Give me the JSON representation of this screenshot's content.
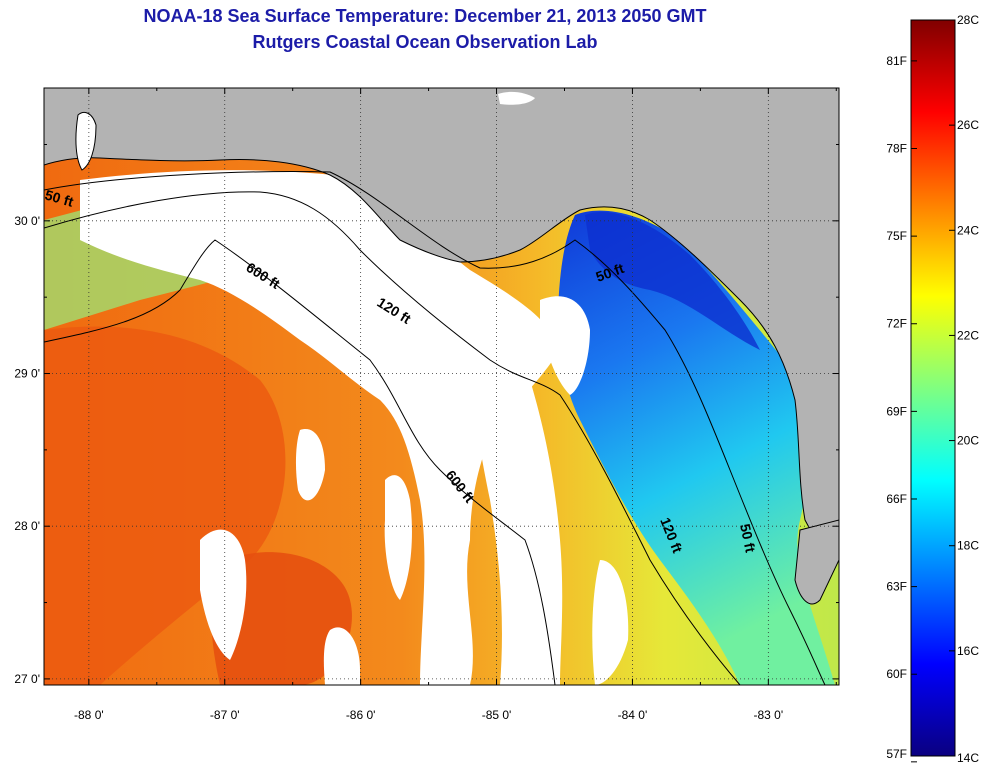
{
  "title": {
    "line1": "NOAA-18 Sea Surface Temperature:  December 21, 2013 2050 GMT",
    "line2": "Rutgers Coastal Ocean Observation Lab"
  },
  "map": {
    "lon_range": [
      -88.33,
      -82.48
    ],
    "lat_range": [
      26.96,
      30.87
    ],
    "lon_ticks": [
      {
        "value": -88,
        "label": "-88 0'"
      },
      {
        "value": -87,
        "label": "-87 0'"
      },
      {
        "value": -86,
        "label": "-86 0'"
      },
      {
        "value": -85,
        "label": "-85 0'"
      },
      {
        "value": -84,
        "label": "-84 0'"
      },
      {
        "value": -83,
        "label": "-83 0'"
      }
    ],
    "lat_ticks": [
      {
        "value": 30,
        "label": "30 0'"
      },
      {
        "value": 29,
        "label": "29 0'"
      },
      {
        "value": 28,
        "label": "28 0'"
      },
      {
        "value": 27,
        "label": "27 0'"
      }
    ],
    "contour_labels": [
      "50 ft",
      "600 ft",
      "120 ft",
      "50 ft",
      "600 ft",
      "120 ft",
      "50 ft"
    ],
    "colors": {
      "land": "#b3b3b3",
      "cloud": "#ffffff",
      "warm": "#f07018",
      "cool": "#1a4fd8"
    }
  },
  "colorbar": {
    "celsius_labels": [
      "28C",
      "26C",
      "24C",
      "22C",
      "20C",
      "18C",
      "16C",
      "14C"
    ],
    "fahrenheit_labels": [
      "81F",
      "78F",
      "75F",
      "72F",
      "69F",
      "66F",
      "63F",
      "60F",
      "57F"
    ],
    "stops": [
      "#0a0080",
      "#0000ff",
      "#0080ff",
      "#00ffff",
      "#80ff80",
      "#ffff00",
      "#ff8000",
      "#ff0000",
      "#800000"
    ]
  }
}
